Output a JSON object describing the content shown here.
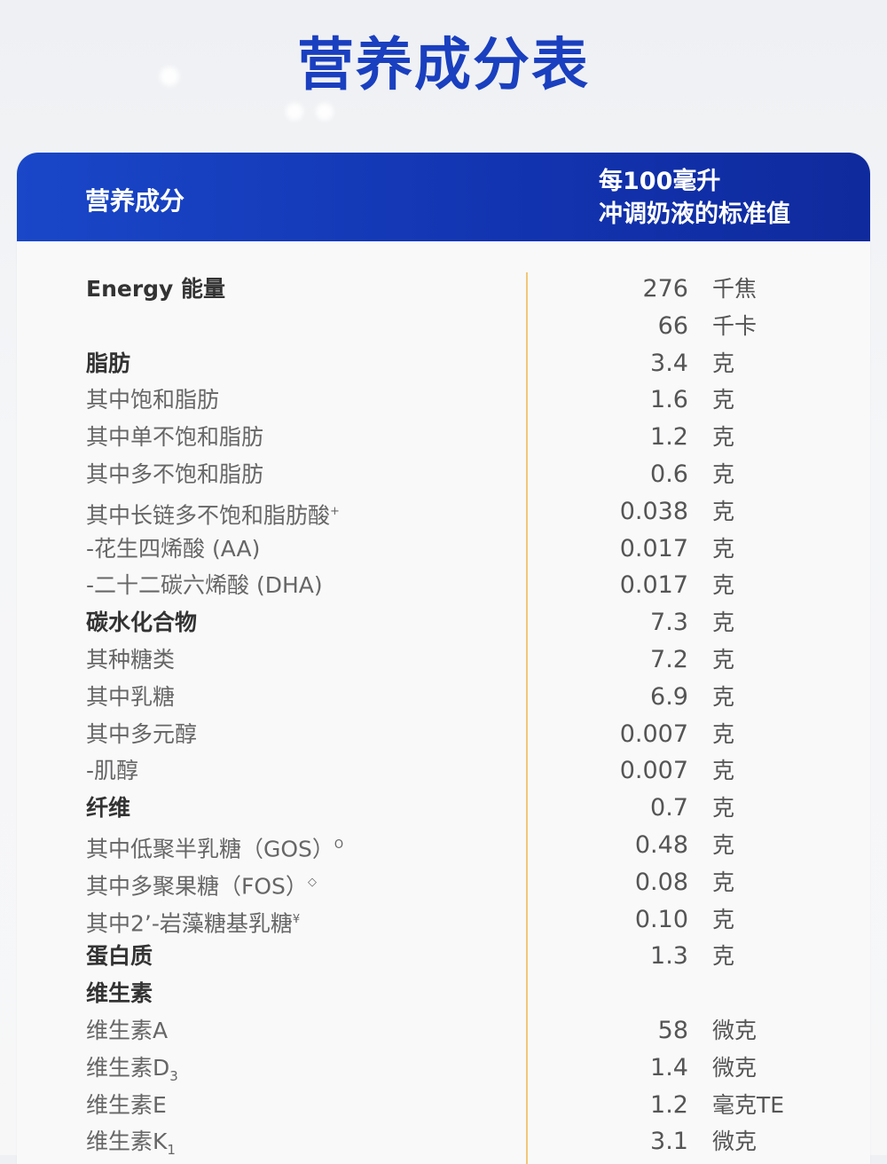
{
  "title": "营养成分表",
  "header": {
    "col_name": "营养成分",
    "col_value_line1": "每100毫升",
    "col_value_line2": "冲调奶液的标准值"
  },
  "rows": [
    {
      "name": "Energy 能量",
      "sup": "",
      "sub": "",
      "value": "276",
      "unit": "千焦",
      "bold": true
    },
    {
      "name": "",
      "sup": "",
      "sub": "",
      "value": "66",
      "unit": "千卡",
      "bold": false
    },
    {
      "name": "脂肪",
      "sup": "",
      "sub": "",
      "value": "3.4",
      "unit": "克",
      "bold": true
    },
    {
      "name": "其中饱和脂肪",
      "sup": "",
      "sub": "",
      "value": "1.6",
      "unit": "克",
      "bold": false
    },
    {
      "name": "其中单不饱和脂肪",
      "sup": "",
      "sub": "",
      "value": "1.2",
      "unit": "克",
      "bold": false
    },
    {
      "name": "其中多不饱和脂肪",
      "sup": "",
      "sub": "",
      "value": "0.6",
      "unit": "克",
      "bold": false
    },
    {
      "name": "其中长链多不饱和脂肪酸",
      "sup": "+",
      "sub": "",
      "value": "0.038",
      "unit": "克",
      "bold": false
    },
    {
      "name": "-花生四烯酸 (AA)",
      "sup": "",
      "sub": "",
      "value": "0.017",
      "unit": "克",
      "bold": false
    },
    {
      "name": "-二十二碳六烯酸 (DHA)",
      "sup": "",
      "sub": "",
      "value": "0.017",
      "unit": "克",
      "bold": false
    },
    {
      "name": "碳水化合物",
      "sup": "",
      "sub": "",
      "value": "7.3",
      "unit": "克",
      "bold": true
    },
    {
      "name": " 其种糖类",
      "sup": "",
      "sub": "",
      "value": "7.2",
      "unit": "克",
      "bold": false
    },
    {
      "name": "其中乳糖",
      "sup": "",
      "sub": "",
      "value": "6.9",
      "unit": "克",
      "bold": false
    },
    {
      "name": "其中多元醇",
      "sup": "",
      "sub": "",
      "value": "0.007",
      "unit": "克",
      "bold": false
    },
    {
      "name": "-肌醇",
      "sup": "",
      "sub": "",
      "value": "0.007",
      "unit": "克",
      "bold": false
    },
    {
      "name": "纤维",
      "sup": "",
      "sub": "",
      "value": "0.7",
      "unit": "克",
      "bold": true
    },
    {
      "name": "其中低聚半乳糖（GOS）",
      "sup": "O",
      "sub": "",
      "value": "0.48",
      "unit": "克",
      "bold": false
    },
    {
      "name": "其中多聚果糖（FOS）",
      "sup": "◇",
      "sub": "",
      "value": "0.08",
      "unit": "克",
      "bold": false
    },
    {
      "name": "其中2’-岩藻糖基乳糖",
      "sup": "¥",
      "sub": "",
      "value": "0.10",
      "unit": "克",
      "bold": false
    },
    {
      "name": "蛋白质",
      "sup": "",
      "sub": "",
      "value": "1.3",
      "unit": "克",
      "bold": true
    },
    {
      "name": "维生素",
      "sup": "",
      "sub": "",
      "value": "",
      "unit": "",
      "bold": true
    },
    {
      "name": "维生素A",
      "sup": "",
      "sub": "",
      "value": "58",
      "unit": "微克",
      "bold": false
    },
    {
      "name": "维生素D",
      "sup": "",
      "sub": "3",
      "value": "1.4",
      "unit": "微克",
      "bold": false
    },
    {
      "name": "维生素E",
      "sup": "",
      "sub": "",
      "value": "1.2",
      "unit": "毫克TE",
      "bold": false
    },
    {
      "name": "维生素K",
      "sup": "",
      "sub": "1",
      "value": "3.1",
      "unit": "微克",
      "bold": false
    }
  ]
}
